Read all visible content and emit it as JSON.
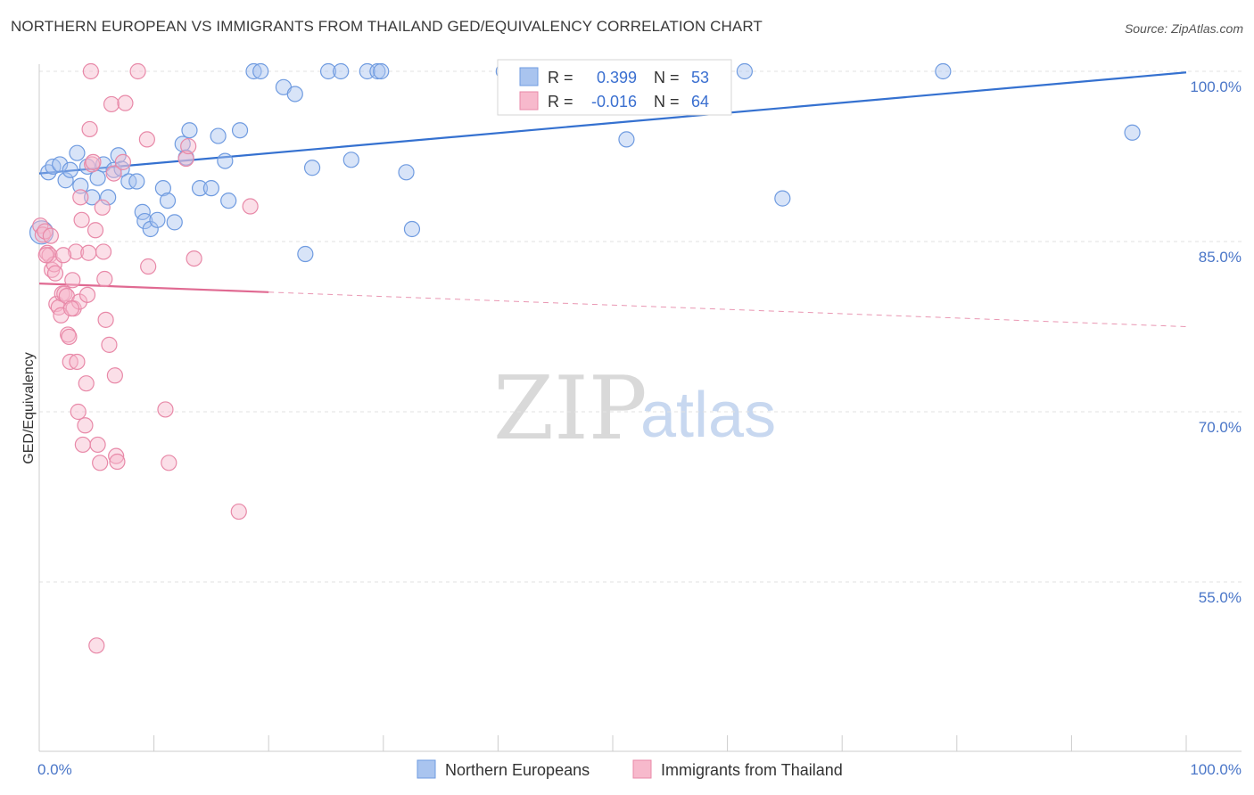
{
  "title": "NORTHERN EUROPEAN VS IMMIGRANTS FROM THAILAND GED/EQUIVALENCY CORRELATION CHART",
  "source": "Source: ZipAtlas.com",
  "watermark": {
    "zip": "ZIP",
    "atlas": "atlas"
  },
  "legend_box": {
    "rows": [
      {
        "r_label": "R =",
        "r_value": "0.399",
        "n_label": "N =",
        "n_value": "53"
      },
      {
        "r_label": "R =",
        "r_value": "-0.016",
        "n_label": "N =",
        "n_value": "64"
      }
    ]
  },
  "bottom_legend": [
    "Northern Europeans",
    "Immigrants from Thailand"
  ],
  "chart_data": {
    "type": "scatter",
    "title": "NORTHERN EUROPEAN VS IMMIGRANTS FROM THAILAND GED/EQUIVALENCY CORRELATION CHART",
    "ylabel": "GED/Equivalency",
    "xlim": [
      0,
      100
    ],
    "ylim": [
      40,
      101
    ],
    "y_ticks": [
      {
        "v": 100,
        "label": "100.0%"
      },
      {
        "v": 85,
        "label": "85.0%"
      },
      {
        "v": 70,
        "label": "70.0%"
      },
      {
        "v": 55,
        "label": "55.0%"
      }
    ],
    "x_tick_labels": {
      "left": "0.0%",
      "right": "100.0%"
    },
    "grid": true,
    "legend_position": "bottom",
    "colors": {
      "blue_fill": "#a9c4ef",
      "blue_stroke": "#6f9be0",
      "blue_line": "#3571d0",
      "pink_fill": "#f7b9cc",
      "pink_stroke": "#e889a8",
      "pink_line": "#e06a92"
    },
    "series": [
      {
        "name": "Northern Europeans",
        "color": "blue",
        "trend": {
          "x0": 0,
          "y0": 91.0,
          "x1": 100,
          "y1": 99.9,
          "solid_until": 100
        },
        "points": [
          [
            0.2,
            85.8
          ],
          [
            0.8,
            91.1
          ],
          [
            1.2,
            91.6
          ],
          [
            1.8,
            91.8
          ],
          [
            2.3,
            90.4
          ],
          [
            2.7,
            91.3
          ],
          [
            3.3,
            92.8
          ],
          [
            3.6,
            89.9
          ],
          [
            4.2,
            91.6
          ],
          [
            4.6,
            88.9
          ],
          [
            5.1,
            90.6
          ],
          [
            5.6,
            91.8
          ],
          [
            6.0,
            88.9
          ],
          [
            6.5,
            91.3
          ],
          [
            6.9,
            92.6
          ],
          [
            7.2,
            91.4
          ],
          [
            7.8,
            90.3
          ],
          [
            8.5,
            90.3
          ],
          [
            9.0,
            87.6
          ],
          [
            9.2,
            86.8
          ],
          [
            9.7,
            86.1
          ],
          [
            10.3,
            86.9
          ],
          [
            10.8,
            89.7
          ],
          [
            11.2,
            88.6
          ],
          [
            11.8,
            86.7
          ],
          [
            12.5,
            93.6
          ],
          [
            12.8,
            92.4
          ],
          [
            13.1,
            94.8
          ],
          [
            14.0,
            89.7
          ],
          [
            15.0,
            89.7
          ],
          [
            15.6,
            94.3
          ],
          [
            16.2,
            92.1
          ],
          [
            16.5,
            88.6
          ],
          [
            17.5,
            94.8
          ],
          [
            18.7,
            100.0
          ],
          [
            19.3,
            100.0
          ],
          [
            21.3,
            98.6
          ],
          [
            22.3,
            98.0
          ],
          [
            23.2,
            83.9
          ],
          [
            23.8,
            91.5
          ],
          [
            25.2,
            100.0
          ],
          [
            26.3,
            100.0
          ],
          [
            27.2,
            92.2
          ],
          [
            28.6,
            100.0
          ],
          [
            29.5,
            100.0
          ],
          [
            29.8,
            100.0
          ],
          [
            32.0,
            91.1
          ],
          [
            32.5,
            86.1
          ],
          [
            40.5,
            100.0
          ],
          [
            51.2,
            94.0
          ],
          [
            61.5,
            100.0
          ],
          [
            64.8,
            88.8
          ],
          [
            78.8,
            100.0
          ],
          [
            95.3,
            94.6
          ]
        ]
      },
      {
        "name": "Immigrants from Thailand",
        "color": "pink",
        "trend": {
          "x0": 0,
          "y0": 81.3,
          "x1": 100,
          "y1": 77.5,
          "solid_until": 20
        },
        "points": [
          [
            0.1,
            86.4
          ],
          [
            0.3,
            85.6
          ],
          [
            0.5,
            85.9
          ],
          [
            0.7,
            84.0
          ],
          [
            0.9,
            83.8
          ],
          [
            1.1,
            82.5
          ],
          [
            1.3,
            83.0
          ],
          [
            1.5,
            79.5
          ],
          [
            1.7,
            79.2
          ],
          [
            1.9,
            78.5
          ],
          [
            2.0,
            80.4
          ],
          [
            2.2,
            80.4
          ],
          [
            2.4,
            80.2
          ],
          [
            2.5,
            76.8
          ],
          [
            2.6,
            76.6
          ],
          [
            2.7,
            74.4
          ],
          [
            2.9,
            81.6
          ],
          [
            3.0,
            79.1
          ],
          [
            3.2,
            84.1
          ],
          [
            3.3,
            74.4
          ],
          [
            3.5,
            79.7
          ],
          [
            3.6,
            88.9
          ],
          [
            3.7,
            86.9
          ],
          [
            3.8,
            67.1
          ],
          [
            4.0,
            68.8
          ],
          [
            4.1,
            72.5
          ],
          [
            4.2,
            80.3
          ],
          [
            4.3,
            84.0
          ],
          [
            4.4,
            94.9
          ],
          [
            4.6,
            91.8
          ],
          [
            4.7,
            92.0
          ],
          [
            4.9,
            86.0
          ],
          [
            5.1,
            67.1
          ],
          [
            5.3,
            65.5
          ],
          [
            5.5,
            88.0
          ],
          [
            5.6,
            84.1
          ],
          [
            5.7,
            81.7
          ],
          [
            5.8,
            78.1
          ],
          [
            6.1,
            75.9
          ],
          [
            6.3,
            97.1
          ],
          [
            6.5,
            91.0
          ],
          [
            6.6,
            73.2
          ],
          [
            6.7,
            66.1
          ],
          [
            6.8,
            65.6
          ],
          [
            7.3,
            92.0
          ],
          [
            7.5,
            97.2
          ],
          [
            4.5,
            100.0
          ],
          [
            8.6,
            100.0
          ],
          [
            9.4,
            94.0
          ],
          [
            9.5,
            82.8
          ],
          [
            11.0,
            70.2
          ],
          [
            11.3,
            65.5
          ],
          [
            12.8,
            92.3
          ],
          [
            13.0,
            93.4
          ],
          [
            13.5,
            83.5
          ],
          [
            17.4,
            61.2
          ],
          [
            18.4,
            88.1
          ],
          [
            5.0,
            49.4
          ],
          [
            0.6,
            83.8
          ],
          [
            1.4,
            82.2
          ],
          [
            3.4,
            70.0
          ],
          [
            2.8,
            79.1
          ],
          [
            1.0,
            85.5
          ],
          [
            2.1,
            83.8
          ]
        ]
      }
    ]
  }
}
